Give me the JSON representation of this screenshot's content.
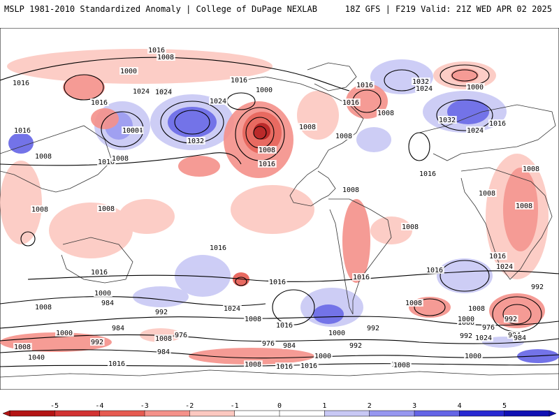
{
  "header": {
    "left_title": "MSLP 1981-2010 Standardized Anomaly | College of DuPage NEXLAB",
    "right_title": "18Z GFS | F219 Valid: 21Z WED APR 02 2025"
  },
  "colorbar": {
    "ticks": [
      "-5",
      "-4",
      "-3",
      "-2",
      "-1",
      "0",
      "1",
      "2",
      "3",
      "4",
      "5"
    ],
    "colors": [
      "#b41414",
      "#d23232",
      "#e65a50",
      "#f5918a",
      "#fcc8c0",
      "#ffffff",
      "#ffffff",
      "#c8c8f5",
      "#9696f0",
      "#6464e6",
      "#2828d2",
      "#1010b4"
    ]
  },
  "isobar_labels": [
    "1016",
    "1008",
    "1000",
    "1016",
    "1024",
    "1016",
    "1000",
    "1024",
    "1016",
    "1032",
    "1024",
    "1024",
    "1016",
    "1016",
    "1008",
    "1000",
    "1008",
    "1008",
    "1016",
    "1024",
    "1008",
    "1032",
    "1000",
    "1024",
    "1016",
    "1016",
    "1032",
    "1024",
    "1016",
    "1008",
    "1008",
    "1016",
    "1008",
    "1008",
    "1008",
    "1008",
    "1008",
    "1008",
    "1008",
    "1016",
    "1016",
    "1016",
    "1016",
    "1016",
    "1024",
    "1000",
    "984",
    "1008",
    "992",
    "984",
    "1000",
    "1008",
    "976",
    "992",
    "1008",
    "984",
    "1040",
    "1024",
    "1008",
    "1016",
    "1000",
    "992",
    "976",
    "984",
    "1000",
    "1008",
    "992",
    "1016",
    "1000",
    "1008",
    "992",
    "984",
    "992",
    "1000",
    "1008",
    "1016",
    "992",
    "976",
    "984",
    "1024",
    "1016",
    "1016",
    "1008",
    "1000",
    "1008"
  ]
}
